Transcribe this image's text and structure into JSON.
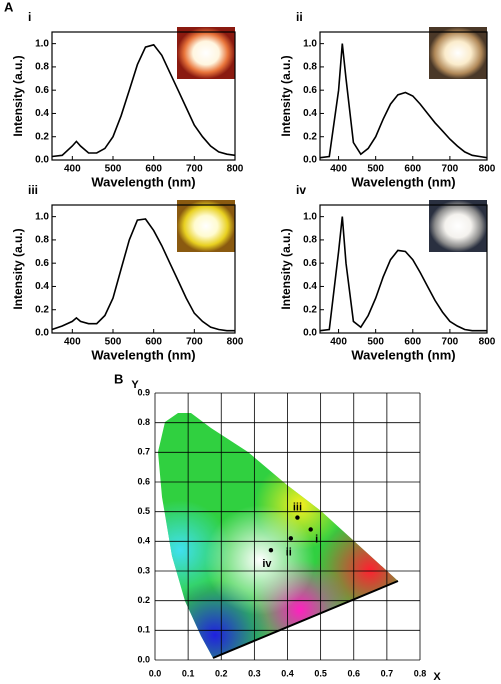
{
  "figure_labels": [
    "A",
    "B"
  ],
  "chart_data": [
    {
      "type": "line",
      "label": "i",
      "xlabel": "Wavelength (nm)",
      "ylabel": "Intensity (a.u.)",
      "color": "#000000",
      "x": [
        350,
        375,
        400,
        410,
        420,
        440,
        460,
        480,
        500,
        520,
        540,
        560,
        580,
        600,
        620,
        640,
        660,
        680,
        700,
        720,
        740,
        760,
        780,
        800
      ],
      "values": [
        0.03,
        0.04,
        0.12,
        0.16,
        0.12,
        0.06,
        0.06,
        0.1,
        0.2,
        0.38,
        0.6,
        0.82,
        0.97,
        0.99,
        0.9,
        0.75,
        0.6,
        0.45,
        0.3,
        0.2,
        0.12,
        0.07,
        0.05,
        0.04
      ],
      "xlim": [
        350,
        800
      ],
      "xticks": [
        400,
        500,
        600,
        700,
        800
      ],
      "ylim": [
        0,
        1.1
      ],
      "yticks": [
        {
          "value": 0,
          "label": "0.0"
        },
        0.2,
        0.4,
        0.6,
        0.8,
        {
          "value": 1,
          "label": "1.0"
        }
      ]
    },
    {
      "type": "line",
      "label": "ii",
      "xlabel": "Wavelength (nm)",
      "ylabel": "Intensity (a.u.)",
      "color": "#000000",
      "x": [
        350,
        375,
        400,
        410,
        420,
        440,
        460,
        480,
        500,
        520,
        540,
        560,
        580,
        600,
        620,
        640,
        660,
        680,
        700,
        720,
        740,
        760,
        780,
        800
      ],
      "values": [
        0.02,
        0.03,
        0.6,
        1.0,
        0.7,
        0.15,
        0.05,
        0.1,
        0.2,
        0.35,
        0.48,
        0.56,
        0.58,
        0.55,
        0.48,
        0.4,
        0.32,
        0.25,
        0.18,
        0.12,
        0.07,
        0.04,
        0.03,
        0.02
      ],
      "xlim": [
        350,
        800
      ],
      "xticks": [
        400,
        500,
        600,
        700,
        800
      ],
      "ylim": [
        0,
        1.1
      ],
      "yticks": [
        {
          "value": 0,
          "label": "0.0"
        },
        0.2,
        0.4,
        0.6,
        0.8,
        {
          "value": 1,
          "label": "1.0"
        }
      ]
    },
    {
      "type": "line",
      "label": "iii",
      "xlabel": "Wavelength (nm)",
      "ylabel": "Intensity (a.u.)",
      "color": "#000000",
      "x": [
        350,
        375,
        400,
        410,
        420,
        440,
        460,
        480,
        500,
        520,
        540,
        560,
        580,
        600,
        620,
        640,
        660,
        680,
        700,
        720,
        740,
        760,
        780,
        800
      ],
      "values": [
        0.03,
        0.06,
        0.1,
        0.13,
        0.1,
        0.08,
        0.08,
        0.15,
        0.3,
        0.55,
        0.8,
        0.97,
        0.98,
        0.88,
        0.75,
        0.6,
        0.45,
        0.3,
        0.17,
        0.1,
        0.05,
        0.03,
        0.02,
        0.02
      ],
      "xlim": [
        350,
        800
      ],
      "xticks": [
        400,
        500,
        600,
        700,
        800
      ],
      "ylim": [
        0,
        1.1
      ],
      "yticks": [
        {
          "value": 0,
          "label": "0.0"
        },
        0.2,
        0.4,
        0.6,
        0.8,
        {
          "value": 1,
          "label": "1.0"
        }
      ]
    },
    {
      "type": "line",
      "label": "iv",
      "xlabel": "Wavelength (nm)",
      "ylabel": "Intensity (a.u.)",
      "color": "#000000",
      "x": [
        350,
        375,
        400,
        410,
        420,
        440,
        460,
        480,
        500,
        520,
        540,
        560,
        580,
        600,
        620,
        640,
        660,
        680,
        700,
        720,
        740,
        760,
        780,
        800
      ],
      "values": [
        0.02,
        0.03,
        0.7,
        1.0,
        0.6,
        0.1,
        0.05,
        0.15,
        0.3,
        0.48,
        0.63,
        0.71,
        0.7,
        0.63,
        0.52,
        0.4,
        0.28,
        0.18,
        0.1,
        0.06,
        0.03,
        0.02,
        0.02,
        0.02
      ],
      "xlim": [
        350,
        800
      ],
      "xticks": [
        400,
        500,
        600,
        700,
        800
      ],
      "ylim": [
        0,
        1.1
      ],
      "yticks": [
        {
          "value": 0,
          "label": "0.0"
        },
        0.2,
        0.4,
        0.6,
        0.8,
        {
          "value": 1,
          "label": "1.0"
        }
      ]
    },
    {
      "type": "scatter",
      "xlabel": "X",
      "ylabel": "Y",
      "color": "#000000",
      "grid": true,
      "x": [
        0.47,
        0.41,
        0.43,
        0.35
      ],
      "values": [
        0.44,
        0.41,
        0.48,
        0.37
      ],
      "point_labels": [
        "i",
        "ii",
        "iii",
        "iv"
      ],
      "xlim": [
        0,
        0.8
      ],
      "xticks": [
        {
          "value": 0,
          "label": "0.0"
        },
        0.1,
        0.2,
        0.3,
        0.4,
        0.5,
        0.6,
        0.7,
        0.8
      ],
      "ylim": [
        0,
        0.9
      ],
      "yticks": [
        {
          "value": 0,
          "label": "0.0"
        },
        0.1,
        0.2,
        0.3,
        0.4,
        0.5,
        0.6,
        0.7,
        0.8,
        0.9
      ]
    }
  ]
}
